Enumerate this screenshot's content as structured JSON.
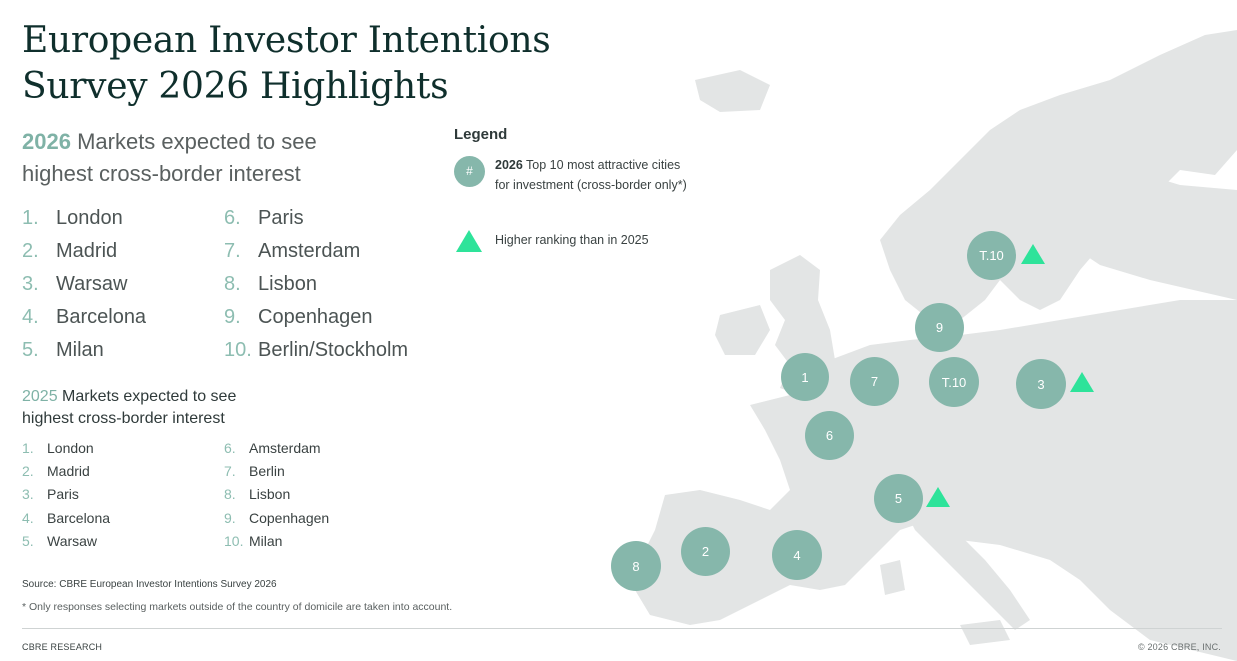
{
  "title": {
    "line1": "European Investor Intentions",
    "line2": "Survey 2026 Highlights"
  },
  "h2026": {
    "year": "2026",
    "rest1": " Markets expected to see",
    "line2": "highest cross-border interest"
  },
  "markets_2026": [
    {
      "num": "1.",
      "city": "London"
    },
    {
      "num": "2.",
      "city": "Madrid"
    },
    {
      "num": "3.",
      "city": "Warsaw"
    },
    {
      "num": "4.",
      "city": "Barcelona"
    },
    {
      "num": "5.",
      "city": "Milan"
    },
    {
      "num": "6.",
      "city": "Paris"
    },
    {
      "num": "7.",
      "city": "Amsterdam"
    },
    {
      "num": "8.",
      "city": "Lisbon"
    },
    {
      "num": "9.",
      "city": "Copenhagen"
    },
    {
      "num": "10.",
      "city": "Berlin/Stockholm"
    }
  ],
  "h2025": {
    "year": "2025",
    "rest1": " Markets expected to see",
    "line2": "highest cross-border interest"
  },
  "markets_2025": [
    {
      "num": "1.",
      "city": "London"
    },
    {
      "num": "2.",
      "city": "Madrid"
    },
    {
      "num": "3.",
      "city": "Paris"
    },
    {
      "num": "4.",
      "city": "Barcelona"
    },
    {
      "num": "5.",
      "city": "Warsaw"
    },
    {
      "num": "6.",
      "city": "Amsterdam"
    },
    {
      "num": "7.",
      "city": "Berlin"
    },
    {
      "num": "8.",
      "city": "Lisbon"
    },
    {
      "num": "9.",
      "city": "Copenhagen"
    },
    {
      "num": "10.",
      "city": "Milan"
    }
  ],
  "legend": {
    "title": "Legend",
    "circle_symbol": "#",
    "circle_bold": "2026",
    "circle_text": " Top 10 most attractive cities for investment (cross-border only*)",
    "triangle_text": "Higher ranking than in 2025"
  },
  "map_markers": [
    {
      "label": "1",
      "city": "London"
    },
    {
      "label": "2",
      "city": "Madrid"
    },
    {
      "label": "3",
      "city": "Warsaw"
    },
    {
      "label": "4",
      "city": "Barcelona"
    },
    {
      "label": "5",
      "city": "Milan"
    },
    {
      "label": "6",
      "city": "Paris"
    },
    {
      "label": "7",
      "city": "Amsterdam"
    },
    {
      "label": "8",
      "city": "Lisbon"
    },
    {
      "label": "9",
      "city": "Copenhagen"
    },
    {
      "label": "T.10",
      "city": "Berlin"
    },
    {
      "label": "T.10",
      "city": "Stockholm"
    }
  ],
  "higher_ranking": [
    "Stockholm",
    "Warsaw",
    "Milan"
  ],
  "source": "Source: CBRE European Investor Intentions Survey 2026",
  "footnote": "* Only responses selecting markets outside of the country of domicile are taken into account.",
  "footer": {
    "brand": "CBRE RESEARCH",
    "copyright": "© 2026 CBRE, INC."
  },
  "colors": {
    "marker": "#86b7ab",
    "triangle": "#2ee39a",
    "land": "#e3e5e5",
    "title": "#0f2f2c"
  }
}
